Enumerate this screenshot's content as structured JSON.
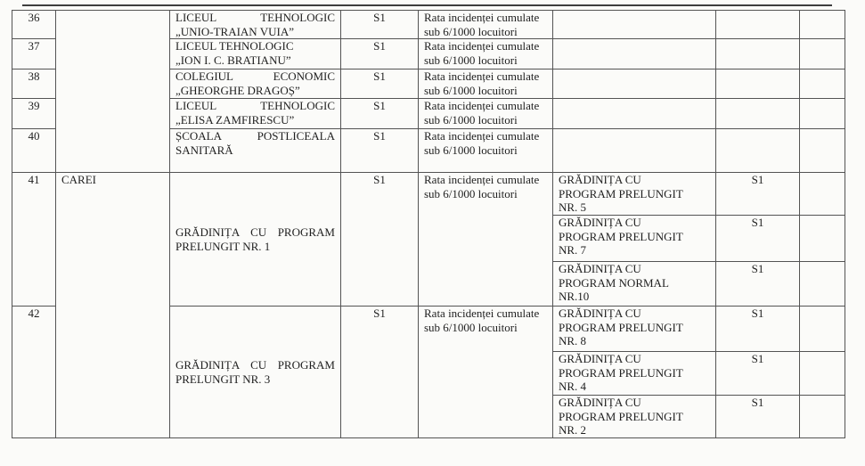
{
  "document": {
    "locality": "CAREI",
    "rows": [
      {
        "no": "36",
        "school_lines": [
          "LICEUL TEHNOLOGIC",
          "„UNIO-TRAIAN VUIA”"
        ],
        "scenario": "S1",
        "criterion_lines": [
          "Rata incidenței cumulate",
          "sub 6/1000 locuitori"
        ]
      },
      {
        "no": "37",
        "school_lines": [
          "LICEUL TEHNOLOGIC",
          "„ION I. C. BRATIANU”"
        ],
        "scenario": "S1",
        "criterion_lines": [
          "Rata incidenței cumulate",
          "sub 6/1000 locuitori"
        ]
      },
      {
        "no": "38",
        "school_lines": [
          "COLEGIUL ECONOMIC",
          "„GHEORGHE DRAGOȘ”"
        ],
        "scenario": "S1",
        "criterion_lines": [
          "Rata incidenței cumulate",
          "sub 6/1000 locuitori"
        ]
      },
      {
        "no": "39",
        "school_lines": [
          "LICEUL TEHNOLOGIC",
          "„ELISA ZAMFIRESCU”"
        ],
        "scenario": "S1",
        "criterion_lines": [
          "Rata incidenței cumulate",
          "sub 6/1000 locuitori"
        ]
      },
      {
        "no": "40",
        "school_lines": [
          "ȘCOALA POSTLICEALA",
          "SANITARĂ"
        ],
        "scenario": "S1",
        "criterion_lines": [
          "Rata incidenței cumulate",
          "sub 6/1000 locuitori"
        ]
      }
    ],
    "groups": [
      {
        "no": "41",
        "school_lines": [
          "GRĂDINIȚA CU PROGRAM",
          "PRELUNGIT NR. 1"
        ],
        "scenario": "S1",
        "criterion_lines": [
          "Rata incidenței cumulate",
          "sub 6/1000 locuitori"
        ],
        "structures": [
          {
            "lines": [
              "GRĂDINIȚA CU",
              "PROGRAM PRELUNGIT",
              "NR. 5"
            ],
            "scenario": "S1"
          },
          {
            "lines": [
              "GRĂDINIȚA CU",
              "PROGRAM PRELUNGIT",
              "NR. 7"
            ],
            "scenario": "S1"
          },
          {
            "lines": [
              "GRĂDINIȚA CU",
              "PROGRAM NORMAL",
              "NR.10"
            ],
            "scenario": "S1"
          }
        ]
      },
      {
        "no": "42",
        "school_lines": [
          "GRĂDINIȚA CU PROGRAM",
          "PRELUNGIT NR. 3"
        ],
        "scenario": "S1",
        "criterion_lines": [
          "Rata incidenței cumulate",
          "sub 6/1000 locuitori"
        ],
        "structures": [
          {
            "lines": [
              "GRĂDINIȚA CU",
              "PROGRAM PRELUNGIT",
              "NR. 8"
            ],
            "scenario": "S1"
          },
          {
            "lines": [
              "GRĂDINIȚA CU",
              "PROGRAM PRELUNGIT",
              "NR. 4"
            ],
            "scenario": "S1"
          },
          {
            "lines": [
              "GRĂDINIȚA CU",
              "PROGRAM PRELUNGIT",
              "NR. 2"
            ],
            "scenario": "S1"
          }
        ]
      }
    ]
  }
}
